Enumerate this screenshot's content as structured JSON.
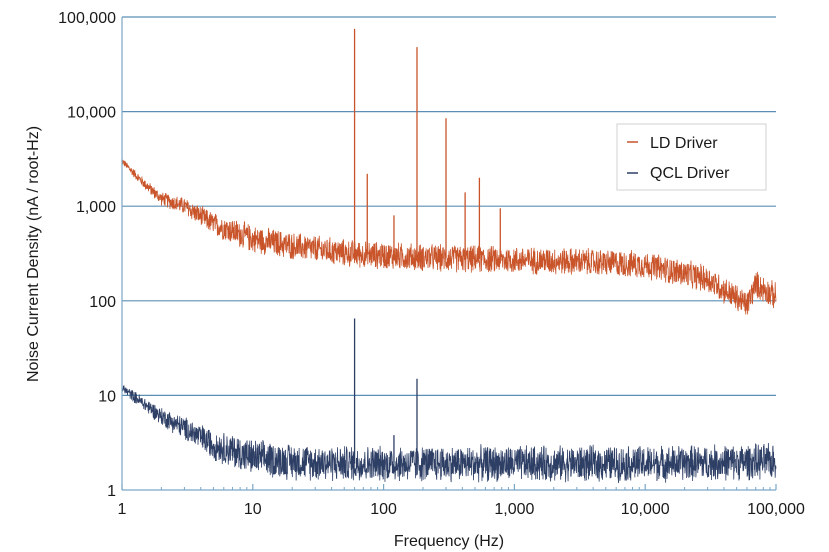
{
  "chart_data": {
    "type": "line",
    "title": "",
    "xlabel": "Frequency (Hz)",
    "ylabel": "Noise Current Density (nA / root-Hz)",
    "x_scale": "log",
    "y_scale": "log",
    "xlim": [
      1,
      100000
    ],
    "ylim": [
      1,
      100000
    ],
    "grid": "horizontal major lines",
    "legend_position": "right",
    "x_ticks": [
      1,
      10,
      100,
      1000,
      10000,
      100000
    ],
    "x_tick_labels": [
      "1",
      "10",
      "100",
      "1,000",
      "10,000",
      "100,000"
    ],
    "y_ticks": [
      1,
      10,
      100,
      1000,
      10000,
      100000
    ],
    "y_tick_labels": [
      "1",
      "10",
      "100",
      "1,000",
      "10,000",
      "100,000"
    ],
    "colors": {
      "grid": "#5b8fb5",
      "axis": "#7aa6c6"
    },
    "series": [
      {
        "name": "LD Driver",
        "color": "#c9542a",
        "x": [
          1,
          1.5,
          2,
          3,
          5,
          10,
          20,
          50,
          100,
          300,
          1000,
          3000,
          10000,
          30000,
          60000,
          70000,
          100000
        ],
        "y": [
          3000,
          1700,
          1200,
          1000,
          650,
          450,
          380,
          320,
          300,
          280,
          270,
          260,
          240,
          170,
          90,
          150,
          110
        ],
        "noise_spread": 0.1,
        "spikes": [
          {
            "x": 60,
            "y": 75000
          },
          {
            "x": 75,
            "y": 2200
          },
          {
            "x": 120,
            "y": 800
          },
          {
            "x": 180,
            "y": 48000
          },
          {
            "x": 300,
            "y": 8500
          },
          {
            "x": 420,
            "y": 1400
          },
          {
            "x": 540,
            "y": 2000
          },
          {
            "x": 780,
            "y": 950
          }
        ]
      },
      {
        "name": "QCL Driver",
        "color": "#2e3f66",
        "x": [
          1,
          1.5,
          2,
          3,
          5,
          10,
          20,
          50,
          100,
          1000,
          10000,
          100000
        ],
        "y": [
          12,
          8,
          6,
          4.5,
          3,
          2.2,
          2,
          1.9,
          1.9,
          1.9,
          1.9,
          2.0
        ],
        "noise_spread": 0.13,
        "spikes": [
          {
            "x": 60,
            "y": 65
          },
          {
            "x": 120,
            "y": 3.8
          },
          {
            "x": 180,
            "y": 15
          }
        ]
      }
    ]
  }
}
